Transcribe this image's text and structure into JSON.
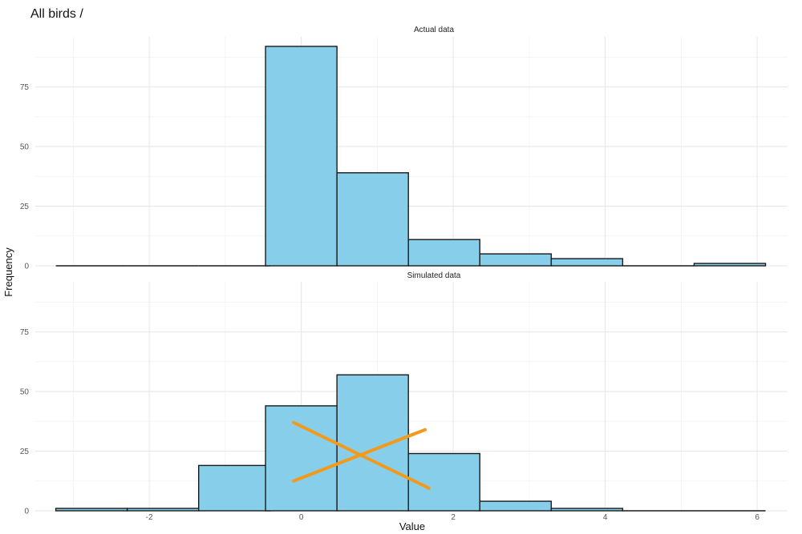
{
  "page_title": "All birds /",
  "colors": {
    "bar_fill": "#87ceeb",
    "bar_stroke": "#1a1a1a",
    "cross_mark": "#f29a1c"
  },
  "chart_data": [
    {
      "type": "bar",
      "panel_title": "Actual data",
      "xlabel": "Value",
      "ylabel": "Frequency",
      "bin_width": 0.94,
      "x_ticks": [
        -2,
        0,
        2,
        4,
        6
      ],
      "y_ticks": [
        0,
        25,
        50,
        75
      ],
      "xlim": [
        -3.5,
        6.4
      ],
      "ylim": [
        0,
        96
      ],
      "bins": [
        {
          "x": -2.76,
          "count": 0
        },
        {
          "x": -1.82,
          "count": 0
        },
        {
          "x": -0.88,
          "count": 0
        },
        {
          "x": 0.0,
          "count": 92
        },
        {
          "x": 0.94,
          "count": 39
        },
        {
          "x": 1.88,
          "count": 11
        },
        {
          "x": 2.82,
          "count": 5
        },
        {
          "x": 3.76,
          "count": 3
        },
        {
          "x": 4.7,
          "count": 0
        },
        {
          "x": 5.64,
          "count": 1
        }
      ]
    },
    {
      "type": "bar",
      "panel_title": "Simulated data",
      "xlabel": "Value",
      "ylabel": "Frequency",
      "bin_width": 0.94,
      "x_ticks": [
        -2,
        0,
        2,
        4,
        6
      ],
      "x_tick_labels": [
        "-2",
        "0",
        "2",
        "4",
        "6"
      ],
      "y_ticks": [
        0,
        25,
        50,
        75
      ],
      "xlim": [
        -3.5,
        6.4
      ],
      "ylim": [
        0,
        96
      ],
      "bins": [
        {
          "x": -2.76,
          "count": 1
        },
        {
          "x": -1.82,
          "count": 1
        },
        {
          "x": -0.88,
          "count": 19
        },
        {
          "x": 0.0,
          "count": 44
        },
        {
          "x": 0.94,
          "count": 57
        },
        {
          "x": 1.88,
          "count": 24
        },
        {
          "x": 2.82,
          "count": 4
        },
        {
          "x": 3.76,
          "count": 1
        },
        {
          "x": 4.7,
          "count": 0
        },
        {
          "x": 5.64,
          "count": 0
        }
      ],
      "annotation": "orange-cross"
    }
  ]
}
